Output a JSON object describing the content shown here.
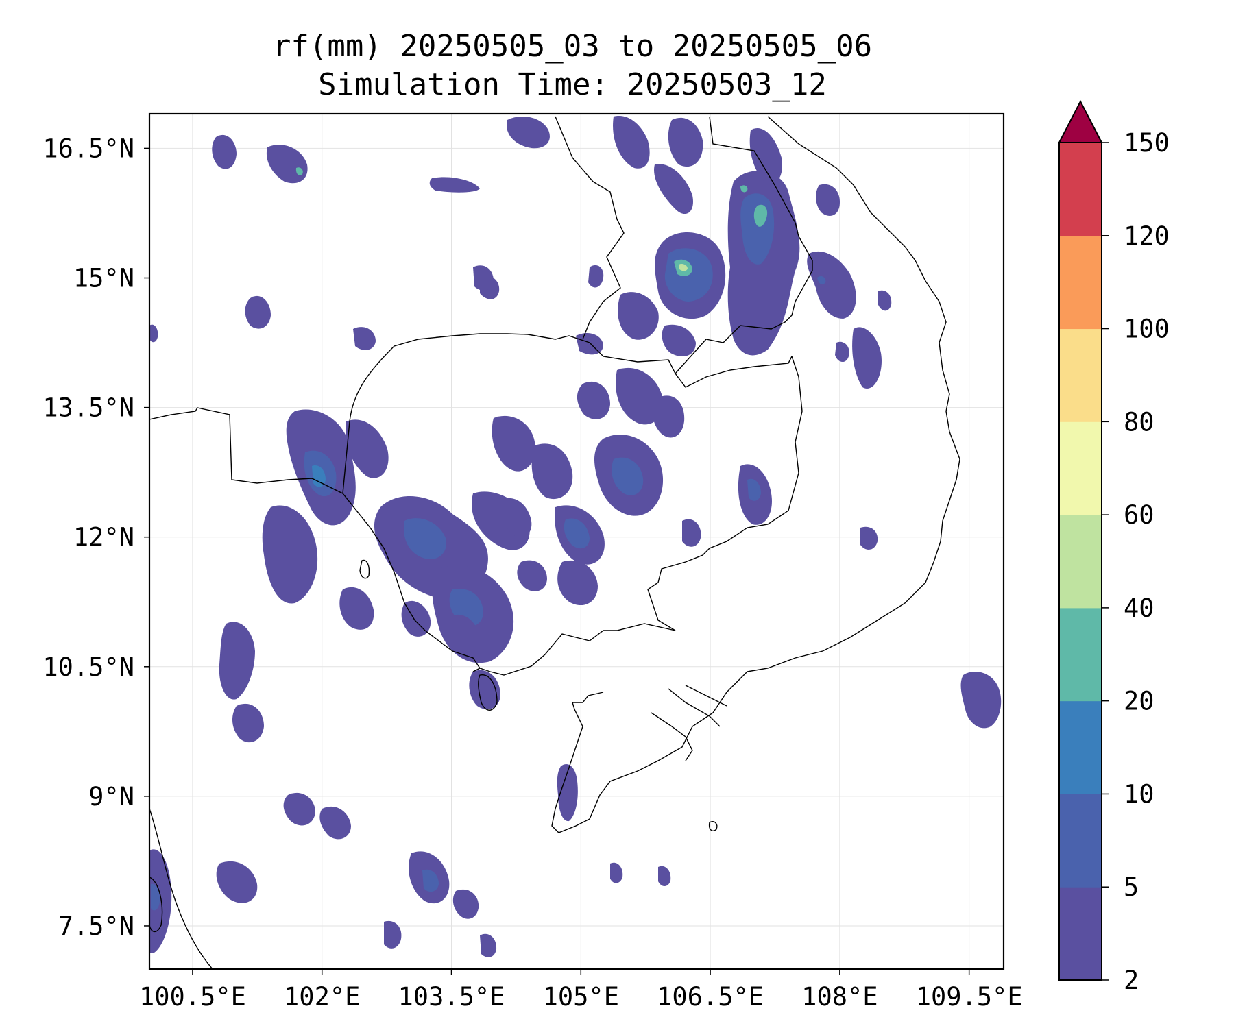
{
  "title": "rf(mm) 20250505_03 to 20250505_06",
  "subtitle": "Simulation Time: 20250503_12",
  "map": {
    "lon_range": [
      100.0,
      109.9
    ],
    "lat_range": [
      7.0,
      16.9
    ],
    "lon_ticks": [
      "100.5°E",
      "102°E",
      "103.5°E",
      "105°E",
      "106.5°E",
      "108°E",
      "109.5°E"
    ],
    "lon_tick_values": [
      100.5,
      102.0,
      103.5,
      105.0,
      106.5,
      108.0,
      109.5
    ],
    "lat_ticks": [
      "16.5°N",
      "15°N",
      "13.5°N",
      "12°N",
      "10.5°N",
      "9°N",
      "7.5°N"
    ],
    "lat_tick_values": [
      16.5,
      15.0,
      13.5,
      12.0,
      10.5,
      9.0,
      7.5
    ],
    "grid": true
  },
  "colorbar": {
    "levels": [
      2,
      5,
      10,
      20,
      40,
      60,
      80,
      100,
      120,
      150
    ],
    "labels": [
      "2",
      "5",
      "10",
      "20",
      "40",
      "60",
      "80",
      "100",
      "120",
      "150"
    ],
    "colors": [
      "#5a50a0",
      "#4a62ad",
      "#3a7fbc",
      "#5fb9a8",
      "#bfe3a0",
      "#f1f8ad",
      "#fadd8a",
      "#fa9b59",
      "#d33f4e"
    ],
    "extend_color": "#9e0142",
    "extend": "max"
  }
}
